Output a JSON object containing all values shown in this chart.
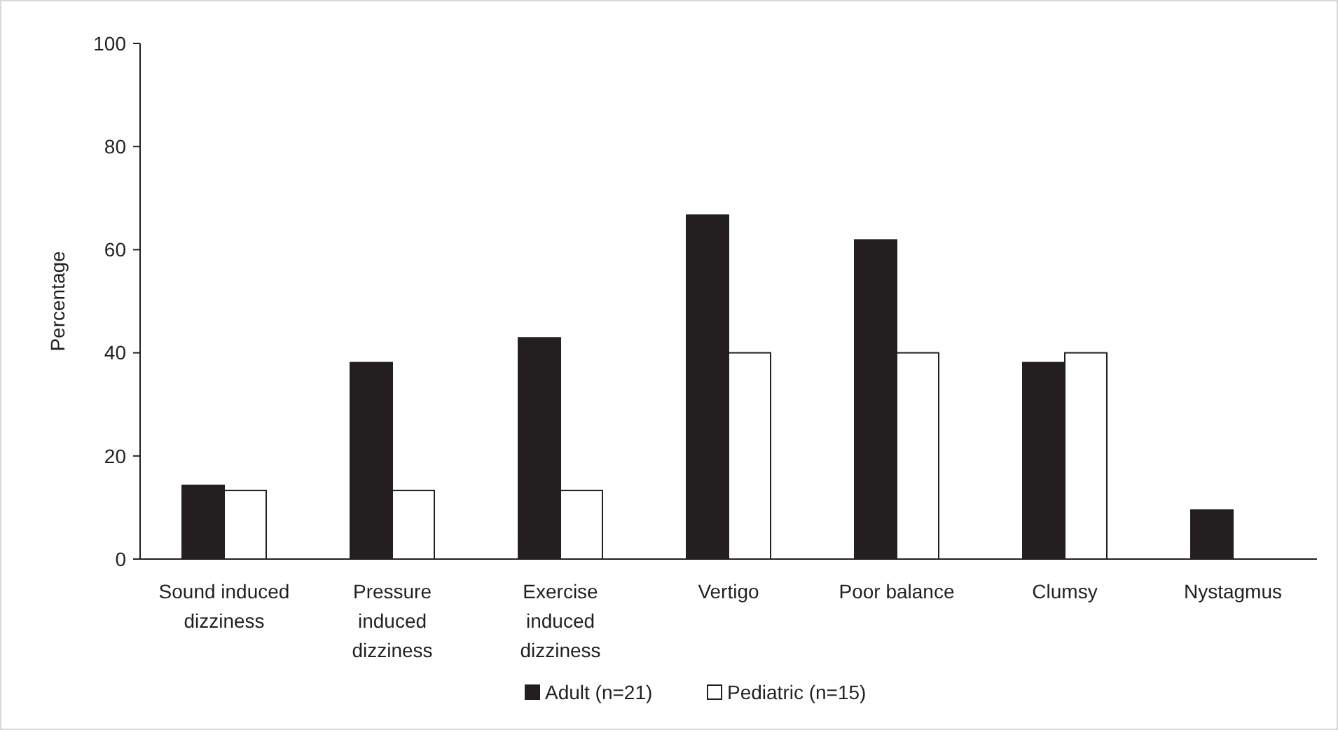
{
  "chart_data": {
    "type": "bar",
    "ylabel": "Percentage",
    "categories": [
      "Sound induced dizziness",
      "Pressure induced dizziness",
      "Exercise induced dizziness",
      "Vertigo",
      "Poor balance",
      "Clumsy",
      "Nystagmus"
    ],
    "series": [
      {
        "name": "Adult (n=21)",
        "color": "#231f20",
        "values": [
          14.3,
          38.1,
          42.9,
          66.7,
          61.9,
          38.1,
          9.5
        ]
      },
      {
        "name": "Pediatric (n=15)",
        "color": "#ffffff",
        "values": [
          13.3,
          13.3,
          13.3,
          40,
          40,
          40,
          0
        ]
      }
    ],
    "ylim": [
      0,
      100
    ],
    "yticks": [
      0,
      20,
      40,
      60,
      80,
      100
    ],
    "grid": false,
    "legend": "bottom"
  }
}
